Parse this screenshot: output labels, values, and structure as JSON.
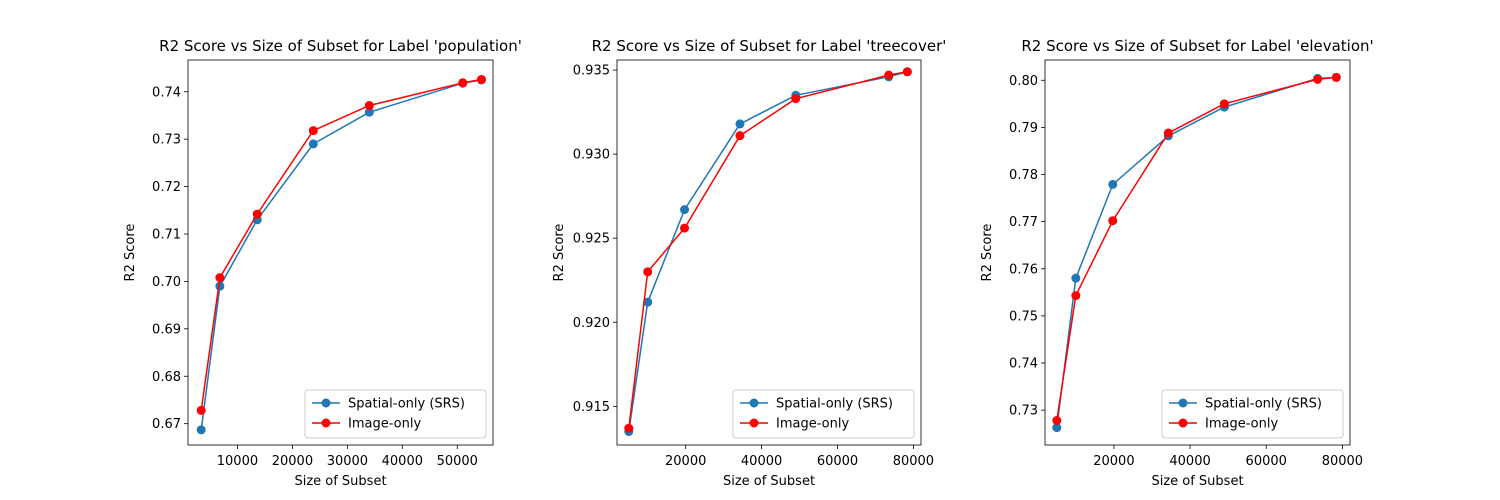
{
  "chart_data": [
    {
      "type": "line",
      "title": "R2 Score vs Size of Subset for Label 'population'",
      "xlabel": "Size of Subset",
      "ylabel": "R2 Score",
      "xlim": [
        1000,
        56500
      ],
      "ylim": [
        0.6655,
        0.7467
      ],
      "xticks": [
        10000,
        20000,
        30000,
        40000,
        50000
      ],
      "xtick_labels": [
        "10000",
        "20000",
        "30000",
        "40000",
        "50000"
      ],
      "yticks": [
        0.67,
        0.68,
        0.69,
        0.7,
        0.71,
        0.72,
        0.73,
        0.74
      ],
      "ytick_labels": [
        "0.67",
        "0.68",
        "0.69",
        "0.70",
        "0.71",
        "0.72",
        "0.73",
        "0.74"
      ],
      "legend_position": "lower-right",
      "series": [
        {
          "name": "Spatial-only (SRS)",
          "color": "#1f77b4",
          "x": [
            3400,
            6800,
            13600,
            23800,
            34000,
            51000,
            54400
          ],
          "y": [
            0.6687,
            0.699,
            0.713,
            0.729,
            0.7357,
            0.7418,
            0.7425
          ]
        },
        {
          "name": "Image-only",
          "color": "#ff0000",
          "x": [
            3400,
            6800,
            13600,
            23800,
            34000,
            51000,
            54400
          ],
          "y": [
            0.6728,
            0.7008,
            0.7142,
            0.7318,
            0.7371,
            0.7419,
            0.7426
          ]
        }
      ]
    },
    {
      "type": "line",
      "title": "R2 Score vs Size of Subset for Label 'treecover'",
      "xlabel": "Size of Subset",
      "ylabel": "R2 Score",
      "xlim": [
        1900,
        82000
      ],
      "ylim": [
        0.9127,
        0.9356
      ],
      "xticks": [
        20000,
        40000,
        60000,
        80000
      ],
      "xtick_labels": [
        "20000",
        "40000",
        "60000",
        "80000"
      ],
      "yticks": [
        0.915,
        0.92,
        0.925,
        0.93,
        0.935
      ],
      "ytick_labels": [
        "0.915",
        "0.920",
        "0.925",
        "0.930",
        "0.935"
      ],
      "legend_position": "lower-right",
      "series": [
        {
          "name": "Spatial-only (SRS)",
          "color": "#1f77b4",
          "x": [
            5000,
            10000,
            19700,
            34300,
            49000,
            73500,
            78400
          ],
          "y": [
            0.9135,
            0.9212,
            0.9267,
            0.9318,
            0.9335,
            0.9346,
            0.9349
          ]
        },
        {
          "name": "Image-only",
          "color": "#ff0000",
          "x": [
            5000,
            10000,
            19700,
            34300,
            49000,
            73500,
            78400
          ],
          "y": [
            0.9137,
            0.923,
            0.9256,
            0.9311,
            0.9333,
            0.9347,
            0.9349
          ]
        }
      ]
    },
    {
      "type": "line",
      "title": "R2 Score vs Size of Subset for Label 'elevation'",
      "xlabel": "Size of Subset",
      "ylabel": "R2 Score",
      "xlim": [
        1900,
        82000
      ],
      "ylim": [
        0.7226,
        0.8043
      ],
      "xticks": [
        20000,
        40000,
        60000,
        80000
      ],
      "xtick_labels": [
        "20000",
        "40000",
        "60000",
        "80000"
      ],
      "yticks": [
        0.73,
        0.74,
        0.75,
        0.76,
        0.77,
        0.78,
        0.79,
        0.8
      ],
      "ytick_labels": [
        "0.73",
        "0.74",
        "0.75",
        "0.76",
        "0.77",
        "0.78",
        "0.79",
        "0.80"
      ],
      "legend_position": "lower-right",
      "series": [
        {
          "name": "Spatial-only (SRS)",
          "color": "#1f77b4",
          "x": [
            5000,
            10000,
            19700,
            34300,
            49000,
            73500,
            78400
          ],
          "y": [
            0.7263,
            0.758,
            0.7779,
            0.7882,
            0.7943,
            0.8004,
            0.8006
          ]
        },
        {
          "name": "Image-only",
          "color": "#ff0000",
          "x": [
            5000,
            10000,
            19700,
            34300,
            49000,
            73500,
            78400
          ],
          "y": [
            0.7278,
            0.7543,
            0.7702,
            0.7888,
            0.795,
            0.8002,
            0.8006
          ]
        }
      ]
    }
  ]
}
